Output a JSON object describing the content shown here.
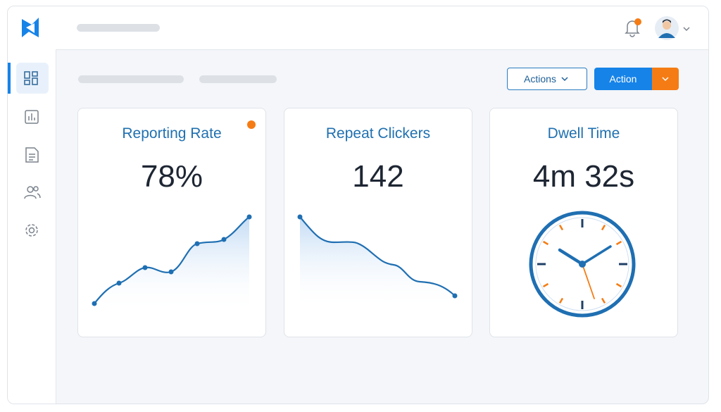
{
  "header": {
    "actions_button": "Actions",
    "action_button": "Action"
  },
  "cards": [
    {
      "title": "Reporting Rate",
      "value": "78%"
    },
    {
      "title": "Repeat Clickers",
      "value": "142"
    },
    {
      "title": "Dwell Time",
      "value": "4m 32s"
    }
  ]
}
